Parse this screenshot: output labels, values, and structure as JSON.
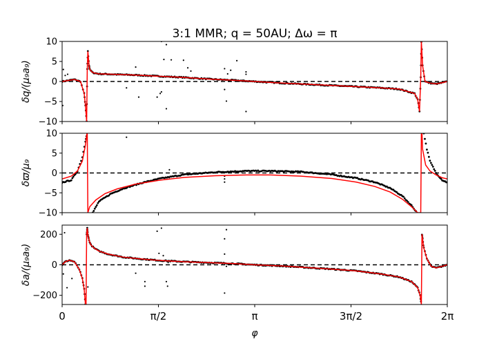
{
  "title": "3:1 MMR; q = 50AU; Δω = π",
  "xlabel": "φ",
  "xlim": [
    0,
    6.283185
  ],
  "x_ticks": [
    {
      "value": 0,
      "label": "0"
    },
    {
      "value": 1.570796,
      "label": "π/2"
    },
    {
      "value": 3.141593,
      "label": "π"
    },
    {
      "value": 4.712389,
      "label": "3π/2"
    },
    {
      "value": 6.283185,
      "label": "2π"
    }
  ],
  "colors": {
    "model": "#ff0000",
    "points": "#000000",
    "zero_line": "#000000"
  },
  "chart_data": [
    {
      "type": "scatter",
      "ylabel": "δq/(μ₉a₉)",
      "ylim": [
        -10,
        10
      ],
      "y_ticks": [
        -10,
        -5,
        0,
        5,
        10
      ],
      "zero_line": true,
      "model_curve": {
        "x": [
          0,
          0.2,
          0.3,
          0.36,
          0.38,
          0.4,
          0.41,
          0.42,
          0.44,
          0.45,
          0.5,
          0.6,
          0.8,
          1.2,
          1.6,
          2.0,
          2.4,
          2.8,
          3.14,
          3.6,
          4.0,
          4.4,
          4.8,
          5.2,
          5.5,
          5.75,
          5.8,
          5.83,
          5.85,
          5.86,
          5.88,
          5.92,
          6.0,
          6.1,
          6.2,
          6.283
        ],
        "y": [
          0,
          0.5,
          0,
          -3,
          -6,
          -10,
          3,
          7.5,
          4,
          3,
          2.2,
          1.9,
          1.8,
          1.6,
          1.3,
          1.0,
          0.6,
          0.3,
          0,
          -0.4,
          -0.7,
          -1.0,
          -1.3,
          -1.6,
          -1.9,
          -3,
          -4.5,
          -7.5,
          1,
          10,
          4,
          0,
          -0.4,
          -0.6,
          -0.3,
          0
        ]
      },
      "scatter_outliers": {
        "x": [
          0.01,
          0.02,
          0.05,
          0.09,
          1.05,
          1.2,
          1.25,
          1.62,
          1.66,
          1.7,
          1.78,
          1.98,
          2.05,
          2.1,
          2.65,
          2.7,
          2.75,
          2.85,
          3.0,
          3.0,
          1.55,
          1.6,
          1.62,
          1.7,
          2.65,
          2.68,
          3.0
        ],
        "y": [
          -6,
          3,
          1.5,
          1.8,
          -1.6,
          3.6,
          -3.9,
          10,
          5.5,
          9.2,
          5.4,
          5.3,
          3.4,
          2.6,
          3.2,
          1.9,
          2.8,
          5.2,
          2.4,
          1.8,
          -3.9,
          -3.0,
          -2.6,
          -6.8,
          -2.0,
          -4.9,
          -7.5
        ]
      }
    },
    {
      "type": "scatter",
      "ylabel": "δϖ/μ₉",
      "ylim": [
        -10,
        10
      ],
      "y_ticks": [
        -10,
        -5,
        0,
        5,
        10
      ],
      "zero_line": true,
      "model_curve": {
        "x": [
          0,
          0.15,
          0.25,
          0.33,
          0.38,
          0.405,
          0.41,
          0.42,
          0.45,
          0.55,
          0.7,
          0.9,
          1.2,
          1.6,
          2.0,
          2.5,
          3.0,
          3.14,
          3.4,
          3.9,
          4.4,
          4.8,
          5.1,
          5.35,
          5.55,
          5.7,
          5.8,
          5.85,
          5.86,
          5.87,
          5.88,
          5.93,
          6.0,
          6.1,
          6.2,
          6.283
        ],
        "y": [
          -1.5,
          -0.8,
          0.5,
          3,
          7,
          10,
          10,
          -10,
          -8.5,
          -6.8,
          -5.2,
          -4,
          -2.8,
          -1.8,
          -1.1,
          -0.7,
          -0.5,
          -0.5,
          -0.5,
          -0.8,
          -1.4,
          -2.3,
          -3.4,
          -4.8,
          -6.6,
          -8.5,
          -10,
          -10,
          10,
          10,
          6,
          2,
          0.5,
          -0.5,
          -1.2,
          -1.5
        ]
      },
      "data_curve": {
        "x": [
          0,
          0.15,
          0.25,
          0.33,
          0.38,
          0.405,
          0.5,
          0.6,
          0.8,
          1.0,
          1.3,
          1.6,
          2.0,
          2.5,
          3.0,
          3.14,
          3.4,
          3.9,
          4.4,
          4.8,
          5.1,
          5.35,
          5.55,
          5.7,
          5.79,
          5.9,
          5.95,
          6.0,
          6.1,
          6.2,
          6.283
        ],
        "y": [
          -2.4,
          -1.8,
          0.5,
          4,
          8,
          10,
          -10,
          -7.2,
          -5.2,
          -3.9,
          -2.5,
          -1.4,
          -0.4,
          0.2,
          0.5,
          0.5,
          0.5,
          0.3,
          -0.4,
          -1.3,
          -2.3,
          -3.8,
          -5.8,
          -8.2,
          -10,
          10,
          6,
          3,
          0,
          -1.8,
          -2.4
        ]
      },
      "scatter_outliers": {
        "x": [
          1.05,
          1.75,
          2.65,
          2.65,
          2.65
        ],
        "y": [
          9.0,
          0.8,
          -0.8,
          -1.5,
          -2.3
        ]
      }
    },
    {
      "type": "scatter",
      "ylabel": "δa/(μ₉a₉)",
      "ylim": [
        -260,
        260
      ],
      "y_ticks": [
        -200,
        0,
        200
      ],
      "zero_line": true,
      "model_curve": {
        "x": [
          0,
          0.05,
          0.12,
          0.2,
          0.28,
          0.33,
          0.36,
          0.38,
          0.39,
          0.4,
          0.41,
          0.42,
          0.44,
          0.47,
          0.52,
          0.6,
          0.75,
          1.0,
          1.3,
          1.6,
          2.0,
          2.4,
          2.8,
          3.14,
          3.6,
          4.0,
          4.4,
          4.8,
          5.2,
          5.5,
          5.7,
          5.8,
          5.84,
          5.86,
          5.87,
          5.88,
          5.9,
          5.95,
          6.02,
          6.1,
          6.2,
          6.283
        ],
        "y": [
          0,
          20,
          30,
          20,
          -30,
          -90,
          -160,
          -260,
          -260,
          200,
          240,
          200,
          160,
          130,
          110,
          90,
          70,
          50,
          38,
          28,
          20,
          14,
          8,
          0,
          -8,
          -18,
          -28,
          -40,
          -60,
          -80,
          -110,
          -150,
          -200,
          -260,
          200,
          170,
          110,
          40,
          -10,
          -20,
          -10,
          0
        ]
      },
      "scatter_outliers": {
        "x": [
          0.02,
          0.04,
          0.08,
          0.16,
          0.42,
          1.2,
          1.35,
          1.35,
          1.55,
          1.58,
          1.62,
          1.65,
          1.7,
          1.72,
          1.73,
          2.65,
          2.65,
          2.68,
          2.68,
          2.65
        ],
        "y": [
          -60,
          210,
          -150,
          -90,
          -145,
          -55,
          -110,
          -140,
          220,
          75,
          240,
          60,
          -110,
          -140,
          15,
          170,
          70,
          230,
          -10,
          -185
        ]
      }
    }
  ]
}
